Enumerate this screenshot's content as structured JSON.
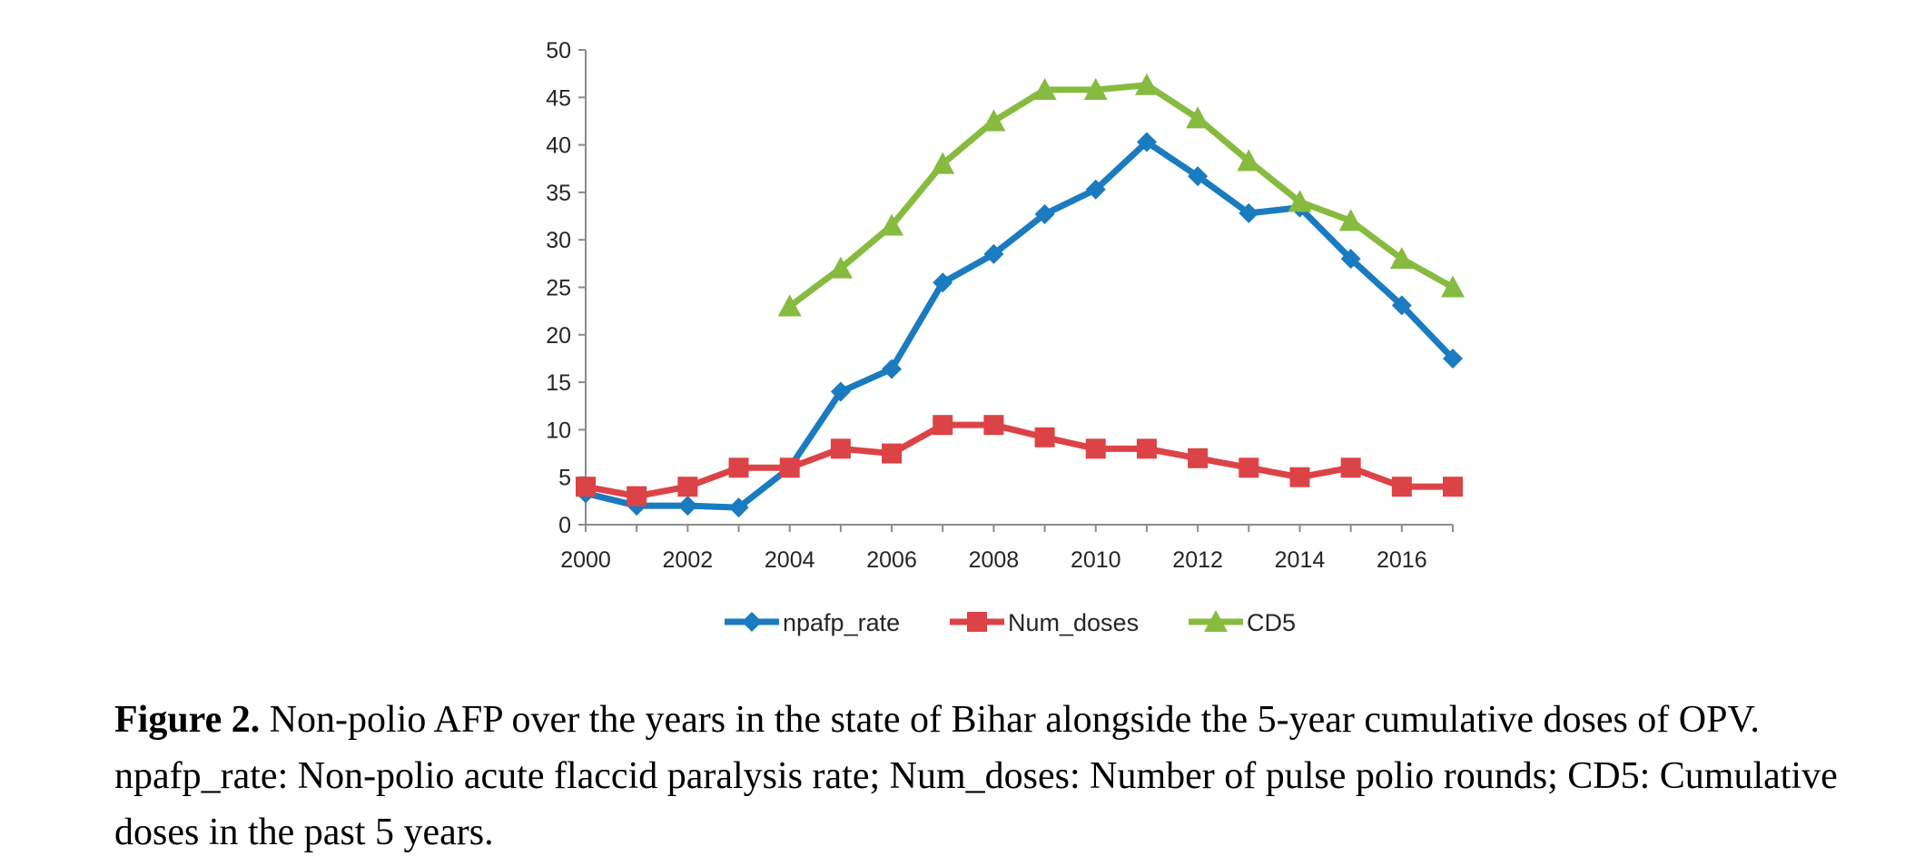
{
  "chart_data": {
    "type": "line",
    "x": [
      2000,
      2001,
      2002,
      2003,
      2004,
      2005,
      2006,
      2007,
      2008,
      2009,
      2010,
      2011,
      2012,
      2013,
      2014,
      2015,
      2016,
      2017
    ],
    "x_tick_labels": [
      "2000",
      "2002",
      "2004",
      "2006",
      "2008",
      "2010",
      "2012",
      "2014",
      "2016"
    ],
    "y_tick_labels": [
      "0",
      "5",
      "10",
      "15",
      "20",
      "25",
      "30",
      "35",
      "40",
      "45",
      "50"
    ],
    "xlim": [
      2000,
      2017
    ],
    "ylim": [
      0,
      50
    ],
    "grid": false,
    "legend_position": "bottom",
    "series": [
      {
        "name": "npafp_rate",
        "color": "#1a7bc1",
        "marker": "diamond",
        "values": [
          3.3,
          2.0,
          2.0,
          1.8,
          6.0,
          14.0,
          16.4,
          25.5,
          28.5,
          32.7,
          35.3,
          40.3,
          36.7,
          32.8,
          33.4,
          28.0,
          23.1,
          17.5
        ]
      },
      {
        "name": "Num_doses",
        "color": "#dc4346",
        "marker": "square",
        "values": [
          4,
          3,
          4,
          6,
          6,
          8,
          7.5,
          10.5,
          10.5,
          9.2,
          8,
          8,
          7,
          6,
          5,
          6,
          4,
          4
        ]
      },
      {
        "name": "CD5",
        "color": "#86bb40",
        "marker": "triangle",
        "values": [
          null,
          null,
          null,
          null,
          23,
          27,
          31.5,
          38,
          42.5,
          45.8,
          45.8,
          46.3,
          42.8,
          38.3,
          34,
          32,
          28,
          25
        ]
      }
    ]
  },
  "caption": {
    "label": "Figure 2.",
    "text": " Non-polio AFP over the years in the state of Bihar alongside the 5-year cumulative doses of OPV. npafp_rate: Non-polio acute flaccid paralysis rate; Num_doses: Number of pulse polio rounds; CD5: Cumulative doses in the past 5 years."
  }
}
